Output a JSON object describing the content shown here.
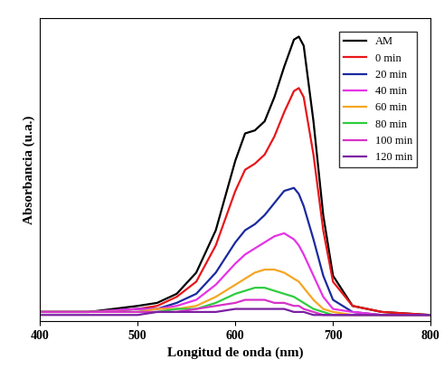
{
  "chart_data": {
    "type": "line",
    "x_label": "Longitud de onda (nm)",
    "y_label": "Absorbancia (u.a.)",
    "x": [
      400,
      450,
      500,
      520,
      540,
      560,
      580,
      600,
      610,
      620,
      630,
      640,
      650,
      660,
      665,
      670,
      680,
      690,
      700,
      720,
      750,
      800
    ],
    "series": [
      {
        "name": "AM",
        "color": "#000000",
        "values": [
          0.03,
          0.03,
          0.05,
          0.06,
          0.09,
          0.16,
          0.3,
          0.53,
          0.62,
          0.63,
          0.66,
          0.74,
          0.84,
          0.93,
          0.94,
          0.91,
          0.66,
          0.35,
          0.15,
          0.05,
          0.03,
          0.02
        ]
      },
      {
        "name": "0 min",
        "color": "#e8161b",
        "values": [
          0.03,
          0.03,
          0.04,
          0.05,
          0.08,
          0.13,
          0.25,
          0.43,
          0.5,
          0.52,
          0.55,
          0.61,
          0.69,
          0.76,
          0.77,
          0.74,
          0.55,
          0.3,
          0.13,
          0.05,
          0.03,
          0.02
        ]
      },
      {
        "name": "20 min",
        "color": "#1a2a9e",
        "values": [
          0.03,
          0.03,
          0.04,
          0.04,
          0.06,
          0.09,
          0.16,
          0.26,
          0.3,
          0.32,
          0.35,
          0.39,
          0.43,
          0.44,
          0.42,
          0.38,
          0.27,
          0.15,
          0.07,
          0.03,
          0.02,
          0.02
        ]
      },
      {
        "name": "40 min",
        "color": "#e633e6",
        "values": [
          0.03,
          0.03,
          0.04,
          0.04,
          0.05,
          0.07,
          0.12,
          0.19,
          0.22,
          0.24,
          0.26,
          0.28,
          0.29,
          0.27,
          0.25,
          0.22,
          0.15,
          0.08,
          0.04,
          0.03,
          0.02,
          0.02
        ]
      },
      {
        "name": "60 min",
        "color": "#f5a623",
        "values": [
          0.03,
          0.03,
          0.03,
          0.04,
          0.04,
          0.05,
          0.08,
          0.12,
          0.14,
          0.16,
          0.17,
          0.17,
          0.16,
          0.14,
          0.13,
          0.11,
          0.07,
          0.04,
          0.03,
          0.02,
          0.02,
          0.02
        ]
      },
      {
        "name": "80 min",
        "color": "#2ecc40",
        "values": [
          0.03,
          0.03,
          0.03,
          0.03,
          0.04,
          0.04,
          0.06,
          0.09,
          0.1,
          0.11,
          0.11,
          0.1,
          0.09,
          0.08,
          0.07,
          0.06,
          0.04,
          0.03,
          0.02,
          0.02,
          0.02,
          0.02
        ]
      },
      {
        "name": "100 min",
        "color": "#d633c8",
        "values": [
          0.03,
          0.03,
          0.03,
          0.03,
          0.03,
          0.04,
          0.05,
          0.06,
          0.07,
          0.07,
          0.07,
          0.06,
          0.06,
          0.05,
          0.05,
          0.04,
          0.03,
          0.02,
          0.02,
          0.02,
          0.02,
          0.02
        ]
      },
      {
        "name": "120 min",
        "color": "#7b1fa2",
        "values": [
          0.02,
          0.02,
          0.02,
          0.03,
          0.03,
          0.03,
          0.03,
          0.04,
          0.04,
          0.04,
          0.04,
          0.04,
          0.04,
          0.03,
          0.03,
          0.03,
          0.02,
          0.02,
          0.02,
          0.02,
          0.02,
          0.02
        ]
      }
    ],
    "xlim": [
      400,
      800
    ],
    "xticks": [
      400,
      500,
      600,
      700,
      800
    ],
    "ylim": [
      0,
      1
    ],
    "yticks": [],
    "tick_labels": "x",
    "legend": "upper right"
  }
}
